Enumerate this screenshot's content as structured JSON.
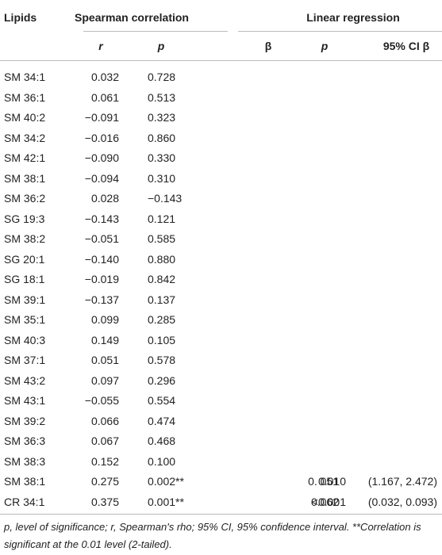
{
  "table": {
    "header": [
      "Lipids",
      "Spearman correlation",
      "Linear regression"
    ],
    "subheader": [
      "r",
      "p",
      "β",
      "p",
      "95% CI β"
    ],
    "rows": [
      [
        "SM 34:1",
        "0.032",
        "0.728"
      ],
      [
        "SM 36:1",
        "0.061",
        "0.513"
      ],
      [
        "SM 40:2",
        "−0.091",
        "0.323"
      ],
      [
        "SM 34:2",
        "−0.016",
        "0.860"
      ],
      [
        "SM 42:1",
        "−0.090",
        "0.330"
      ],
      [
        "SM 38:1",
        "−0.094",
        "0.310"
      ],
      [
        "SM 36:2",
        "0.028",
        "−0.143"
      ],
      [
        "SG 19:3",
        "−0.143",
        "0.121"
      ],
      [
        "SM 38:2",
        "−0.051",
        "0.585"
      ],
      [
        "SG 20:1",
        "−0.140",
        "0.880"
      ],
      [
        "SG 18:1",
        "−0.019",
        "0.842"
      ],
      [
        "SM 39:1",
        "−0.137",
        "0.137"
      ],
      [
        "SM 35:1",
        "0.099",
        "0.285"
      ],
      [
        "SM 40:3",
        "0.149",
        "0.105"
      ],
      [
        "SM 37:1",
        "0.051",
        "0.578"
      ],
      [
        "SM 43:2",
        "0.097",
        "0.296"
      ],
      [
        "SM 43:1",
        "−0.055",
        "0.554"
      ],
      [
        "SM 39:2",
        "0.066",
        "0.474"
      ],
      [
        "SM 36:3",
        "0.067",
        "0.468"
      ],
      [
        "SM 38:3",
        "0.152",
        "0.100"
      ],
      [
        "SM 38:1",
        "0.275",
        "0.002**",
        "0. 051",
        "0.010",
        "(1.167, 2.472)"
      ],
      [
        "CR 34:1",
        "0.375",
        "0.001**",
        "0.062",
        "<0.001",
        "(0.032, 0.093)"
      ]
    ],
    "footnote": "p, level of significance; r, Spearman's rho; 95% CI, 95% confidence interval. **Correlation is significant at the 0.01 level (2-tailed)."
  }
}
